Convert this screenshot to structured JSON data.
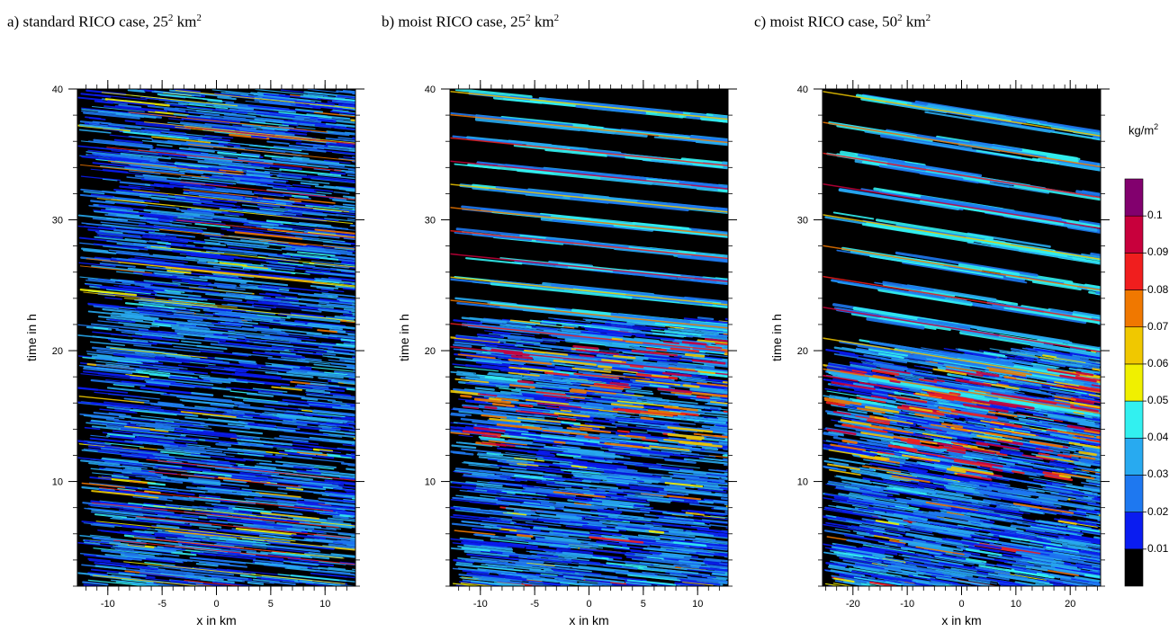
{
  "panels": [
    {
      "title": "a) standard RICO case, 25",
      "title_exp": "2",
      "title_tail": " km",
      "title_exp2": "2",
      "xlabel": "x in km",
      "ylabel": "time in h",
      "xlim": [
        -12.8,
        12.8
      ],
      "ylim": [
        2,
        40
      ],
      "xticks": [
        -10,
        -5,
        0,
        5,
        10
      ],
      "xtick_labels": [
        "-10",
        "-5",
        "0",
        "5",
        "10"
      ],
      "yticks": [
        10,
        20,
        30,
        40
      ],
      "ytick_labels": [
        "10",
        "20",
        "30",
        "40"
      ],
      "pattern": "standard"
    },
    {
      "title": "b) moist RICO case, 25",
      "title_exp": "2",
      "title_tail": " km",
      "title_exp2": "2",
      "xlabel": "x in km",
      "ylabel": "time in h",
      "xlim": [
        -12.8,
        12.8
      ],
      "ylim": [
        2,
        40
      ],
      "xticks": [
        -10,
        -5,
        0,
        5,
        10
      ],
      "xtick_labels": [
        "-10",
        "-5",
        "0",
        "5",
        "10"
      ],
      "yticks": [
        10,
        20,
        30,
        40
      ],
      "ytick_labels": [
        "10",
        "20",
        "30",
        "40"
      ],
      "pattern": "moist25"
    },
    {
      "title": "c) moist RICO case, 50",
      "title_exp": "2",
      "title_tail": " km",
      "title_exp2": "2",
      "xlabel": "x in km",
      "ylabel": "time in h",
      "xlim": [
        -25.6,
        25.6
      ],
      "ylim": [
        2,
        40
      ],
      "xticks": [
        -20,
        -10,
        0,
        10,
        20
      ],
      "xtick_labels": [
        "-20",
        "-10",
        "0",
        "10",
        "20"
      ],
      "yticks": [
        10,
        20,
        30,
        40
      ],
      "ytick_labels": [
        "10",
        "20",
        "30",
        "40"
      ],
      "pattern": "moist50"
    }
  ],
  "colorbar": {
    "unit": "kg/m",
    "unit_exp": "2",
    "levels": [
      "0.01",
      "0.02",
      "0.03",
      "0.04",
      "0.05",
      "0.06",
      "0.07",
      "0.08",
      "0.09",
      "0.1"
    ],
    "colors": [
      "#000000",
      "#0a1cf0",
      "#1e78f0",
      "#28aaf0",
      "#32f0f0",
      "#f0f000",
      "#f0c800",
      "#f07800",
      "#f01e1e",
      "#c8003c",
      "#82006e"
    ]
  },
  "chart_data": [
    {
      "type": "heatmap",
      "title": "a) standard RICO case, 25² km²",
      "xlabel": "x in km",
      "ylabel": "time in h",
      "xlim": [
        -12.8,
        12.8
      ],
      "ylim": [
        2,
        40
      ],
      "colorbar_unit": "kg/m²",
      "colorbar_levels": [
        0.01,
        0.02,
        0.03,
        0.04,
        0.05,
        0.06,
        0.07,
        0.08,
        0.09,
        0.1
      ]
    },
    {
      "type": "heatmap",
      "title": "b) moist RICO case, 25² km²",
      "xlabel": "x in km",
      "ylabel": "time in h",
      "xlim": [
        -12.8,
        12.8
      ],
      "ylim": [
        2,
        40
      ],
      "colorbar_unit": "kg/m²",
      "colorbar_levels": [
        0.01,
        0.02,
        0.03,
        0.04,
        0.05,
        0.06,
        0.07,
        0.08,
        0.09,
        0.1
      ]
    },
    {
      "type": "heatmap",
      "title": "c) moist RICO case, 50² km²",
      "xlabel": "x in km",
      "ylabel": "time in h",
      "xlim": [
        -25.6,
        25.6
      ],
      "ylim": [
        2,
        40
      ],
      "colorbar_unit": "kg/m²",
      "colorbar_levels": [
        0.01,
        0.02,
        0.03,
        0.04,
        0.05,
        0.06,
        0.07,
        0.08,
        0.09,
        0.1
      ]
    }
  ]
}
